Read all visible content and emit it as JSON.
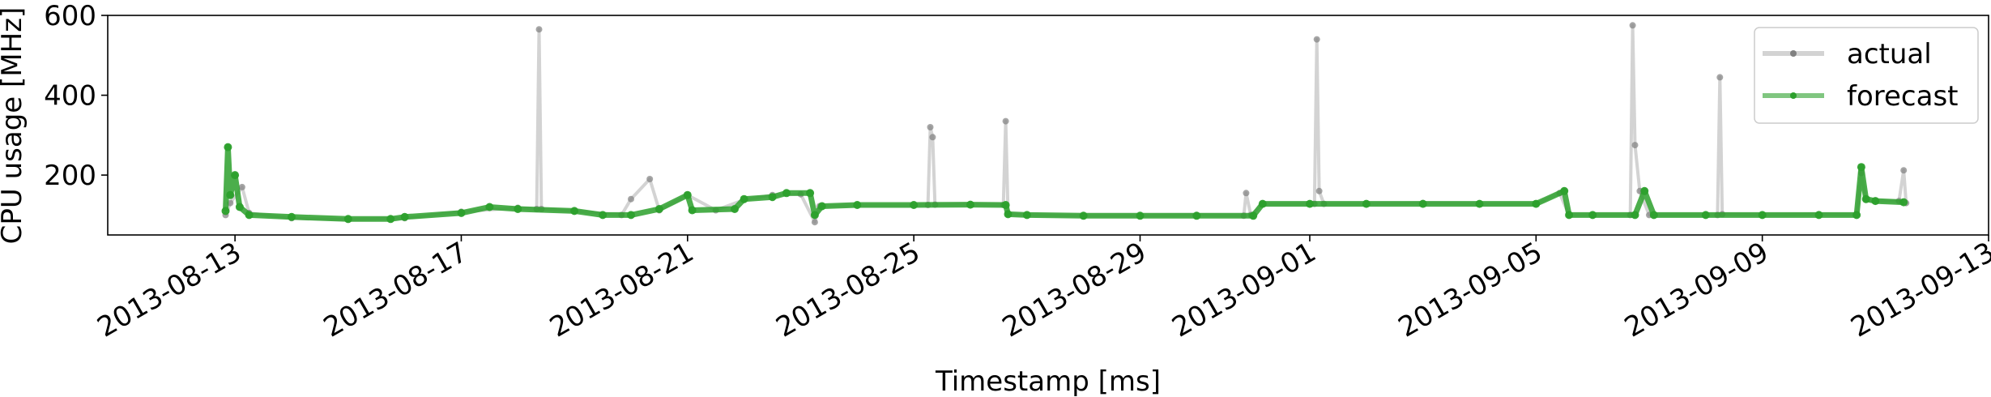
{
  "chart_data": {
    "type": "line",
    "title": "",
    "xlabel": "Timestamp [ms]",
    "ylabel": "CPU usage [MHz]",
    "xlim": [
      "2013-08-10T18:00",
      "2013-09-13T00:00"
    ],
    "ylim": [
      50,
      600
    ],
    "x_ticks": [
      "2013-08-13",
      "2013-08-17",
      "2013-08-21",
      "2013-08-25",
      "2013-08-29",
      "2013-09-01",
      "2013-09-05",
      "2013-09-09",
      "2013-09-13"
    ],
    "y_ticks": [
      200,
      400,
      600
    ],
    "grid": false,
    "legend_position": "top-right",
    "series": [
      {
        "name": "actual",
        "color": "#808080",
        "line_color": "#d3d3d3",
        "points": [
          [
            "2013-08-12T20:00",
            100
          ],
          [
            "2013-08-12T22:00",
            130
          ],
          [
            "2013-08-13T03:00",
            170
          ],
          [
            "2013-08-13T06:00",
            105
          ],
          [
            "2013-08-14T00:00",
            92
          ],
          [
            "2013-08-15T00:00",
            88
          ],
          [
            "2013-08-16T00:00",
            92
          ],
          [
            "2013-08-17T00:00",
            108
          ],
          [
            "2013-08-18T00:00",
            118
          ],
          [
            "2013-08-18T08:00",
            115
          ],
          [
            "2013-08-18T09:00",
            565
          ],
          [
            "2013-08-18T10:00",
            115
          ],
          [
            "2013-08-19T00:00",
            110
          ],
          [
            "2013-08-19T20:00",
            100
          ],
          [
            "2013-08-20T00:00",
            140
          ],
          [
            "2013-08-20T08:00",
            190
          ],
          [
            "2013-08-20T12:00",
            112
          ],
          [
            "2013-08-21T00:00",
            150
          ],
          [
            "2013-08-21T12:00",
            112
          ],
          [
            "2013-08-22T00:00",
            138
          ],
          [
            "2013-08-22T12:00",
            150
          ],
          [
            "2013-08-23T00:00",
            152
          ],
          [
            "2013-08-23T06:00",
            82
          ],
          [
            "2013-08-23T08:00",
            122
          ],
          [
            "2013-08-24T00:00",
            124
          ],
          [
            "2013-08-25T00:00",
            124
          ],
          [
            "2013-08-25T06:00",
            125
          ],
          [
            "2013-08-25T07:00",
            320
          ],
          [
            "2013-08-25T08:00",
            295
          ],
          [
            "2013-08-25T09:00",
            126
          ],
          [
            "2013-08-26T00:00",
            127
          ],
          [
            "2013-08-26T14:00",
            125
          ],
          [
            "2013-08-26T15:00",
            335
          ],
          [
            "2013-08-26T16:00",
            102
          ],
          [
            "2013-08-27T00:00",
            100
          ],
          [
            "2013-08-28T00:00",
            98
          ],
          [
            "2013-08-29T00:00",
            98
          ],
          [
            "2013-08-30T00:00",
            100
          ],
          [
            "2013-08-30T20:00",
            98
          ],
          [
            "2013-08-30T21:00",
            155
          ],
          [
            "2013-08-30T23:00",
            100
          ],
          [
            "2013-08-31T04:00",
            128
          ],
          [
            "2013-09-01T00:00",
            128
          ],
          [
            "2013-09-01T02:00",
            128
          ],
          [
            "2013-09-01T03:00",
            540
          ],
          [
            "2013-09-01T04:00",
            160
          ],
          [
            "2013-09-01T06:00",
            128
          ],
          [
            "2013-09-02T00:00",
            128
          ],
          [
            "2013-09-03T00:00",
            130
          ],
          [
            "2013-09-04T00:00",
            128
          ],
          [
            "2013-09-05T00:00",
            128
          ],
          [
            "2013-09-05T10:00",
            155
          ],
          [
            "2013-09-05T14:00",
            100
          ],
          [
            "2013-09-06T00:00",
            100
          ],
          [
            "2013-09-06T16:00",
            100
          ],
          [
            "2013-09-06T17:00",
            575
          ],
          [
            "2013-09-06T18:00",
            275
          ],
          [
            "2013-09-06T20:00",
            160
          ],
          [
            "2013-09-07T00:00",
            100
          ],
          [
            "2013-09-08T00:00",
            100
          ],
          [
            "2013-09-08T05:00",
            100
          ],
          [
            "2013-09-08T06:00",
            445
          ],
          [
            "2013-09-08T07:00",
            102
          ],
          [
            "2013-09-09T00:00",
            100
          ],
          [
            "2013-09-10T00:00",
            102
          ],
          [
            "2013-09-10T16:00",
            100
          ],
          [
            "2013-09-10T18:00",
            205
          ],
          [
            "2013-09-10T20:00",
            138
          ],
          [
            "2013-09-11T00:00",
            135
          ],
          [
            "2013-09-11T10:00",
            135
          ],
          [
            "2013-09-11T12:00",
            212
          ],
          [
            "2013-09-11T13:00",
            130
          ]
        ]
      },
      {
        "name": "forecast",
        "color": "#2ca02c",
        "line_color": "#2ca02c",
        "points": [
          [
            "2013-08-12T20:00",
            110
          ],
          [
            "2013-08-12T21:00",
            270
          ],
          [
            "2013-08-12T22:00",
            150
          ],
          [
            "2013-08-13T00:00",
            200
          ],
          [
            "2013-08-13T02:00",
            120
          ],
          [
            "2013-08-13T06:00",
            100
          ],
          [
            "2013-08-14T00:00",
            95
          ],
          [
            "2013-08-15T00:00",
            90
          ],
          [
            "2013-08-15T18:00",
            90
          ],
          [
            "2013-08-16T00:00",
            95
          ],
          [
            "2013-08-17T00:00",
            105
          ],
          [
            "2013-08-17T12:00",
            120
          ],
          [
            "2013-08-18T00:00",
            115
          ],
          [
            "2013-08-19T00:00",
            110
          ],
          [
            "2013-08-19T12:00",
            100
          ],
          [
            "2013-08-20T00:00",
            100
          ],
          [
            "2013-08-20T12:00",
            115
          ],
          [
            "2013-08-21T00:00",
            150
          ],
          [
            "2013-08-21T02:00",
            112
          ],
          [
            "2013-08-21T20:00",
            115
          ],
          [
            "2013-08-22T00:00",
            140
          ],
          [
            "2013-08-22T12:00",
            145
          ],
          [
            "2013-08-22T18:00",
            155
          ],
          [
            "2013-08-23T04:00",
            155
          ],
          [
            "2013-08-23T06:00",
            100
          ],
          [
            "2013-08-23T09:00",
            122
          ],
          [
            "2013-08-24T00:00",
            125
          ],
          [
            "2013-08-25T00:00",
            125
          ],
          [
            "2013-08-26T00:00",
            126
          ],
          [
            "2013-08-26T15:00",
            125
          ],
          [
            "2013-08-26T16:00",
            102
          ],
          [
            "2013-08-27T00:00",
            100
          ],
          [
            "2013-08-28T00:00",
            98
          ],
          [
            "2013-08-29T00:00",
            98
          ],
          [
            "2013-08-30T00:00",
            98
          ],
          [
            "2013-08-31T00:00",
            98
          ],
          [
            "2013-08-31T04:00",
            128
          ],
          [
            "2013-09-01T00:00",
            128
          ],
          [
            "2013-09-02T00:00",
            128
          ],
          [
            "2013-09-03T00:00",
            128
          ],
          [
            "2013-09-04T00:00",
            128
          ],
          [
            "2013-09-05T00:00",
            128
          ],
          [
            "2013-09-05T12:00",
            160
          ],
          [
            "2013-09-05T14:00",
            100
          ],
          [
            "2013-09-06T00:00",
            100
          ],
          [
            "2013-09-06T18:00",
            100
          ],
          [
            "2013-09-06T22:00",
            160
          ],
          [
            "2013-09-07T02:00",
            100
          ],
          [
            "2013-09-08T00:00",
            100
          ],
          [
            "2013-09-09T00:00",
            100
          ],
          [
            "2013-09-10T00:00",
            100
          ],
          [
            "2013-09-10T16:00",
            100
          ],
          [
            "2013-09-10T18:00",
            220
          ],
          [
            "2013-09-10T20:00",
            140
          ],
          [
            "2013-09-11T00:00",
            135
          ],
          [
            "2013-09-11T12:00",
            132
          ]
        ]
      }
    ]
  }
}
